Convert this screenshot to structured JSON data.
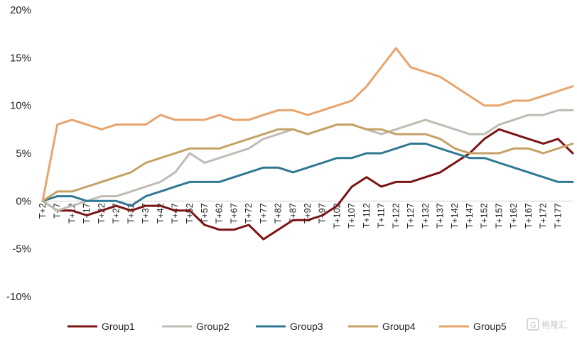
{
  "chart_data": {
    "type": "line",
    "title": "",
    "xlabel": "",
    "ylabel": "",
    "ylim": [
      -10,
      20
    ],
    "yticks": [
      "20%",
      "15%",
      "10%",
      "5%",
      "0%",
      "-5%",
      "-10%"
    ],
    "ytick_values": [
      20,
      15,
      10,
      5,
      0,
      -5,
      -10
    ],
    "xlim": [
      2,
      182
    ],
    "x_tick_labels": [
      "T+2",
      "T+7",
      "T+12",
      "T+17",
      "T+22",
      "T+27",
      "T+32",
      "T+37",
      "T+42",
      "T+47",
      "T+52",
      "T+57",
      "T+62",
      "T+67",
      "T+72",
      "T+77",
      "T+82",
      "T+87",
      "T+92",
      "T+97",
      "T+102",
      "T+107",
      "T+112",
      "T+117",
      "T+122",
      "T+127",
      "T+132",
      "T+137",
      "T+142",
      "T+147",
      "T+152",
      "T+157",
      "T+162",
      "T+167",
      "T+172",
      "T+177"
    ],
    "x_tick_values": [
      2,
      7,
      12,
      17,
      22,
      27,
      32,
      37,
      42,
      47,
      52,
      57,
      62,
      67,
      72,
      77,
      82,
      87,
      92,
      97,
      102,
      107,
      112,
      117,
      122,
      127,
      132,
      137,
      142,
      147,
      152,
      157,
      162,
      167,
      172,
      177
    ],
    "x": [
      2,
      7,
      12,
      17,
      22,
      27,
      32,
      37,
      42,
      47,
      52,
      57,
      62,
      67,
      72,
      77,
      82,
      87,
      92,
      97,
      102,
      107,
      112,
      117,
      122,
      127,
      132,
      137,
      142,
      147,
      152,
      157,
      162,
      167,
      172,
      177,
      182
    ],
    "grid": false,
    "legend_position": "bottom",
    "series": [
      {
        "name": "Group1",
        "color": "#7b1414",
        "values": [
          0,
          -1,
          -1,
          -1.5,
          -1,
          -0.5,
          -1,
          -0.5,
          -0.5,
          -1,
          -1,
          -2.5,
          -3,
          -3,
          -2.5,
          -4,
          -3,
          -2,
          -2,
          -1.5,
          -0.5,
          1.5,
          2.5,
          1.5,
          2,
          2,
          2.5,
          3,
          4,
          5,
          6.5,
          7.5,
          7,
          6.5,
          6,
          6.5,
          5
        ]
      },
      {
        "name": "Group2",
        "color": "#bfbcb5",
        "values": [
          0,
          -1,
          -0.5,
          0,
          0.5,
          0.5,
          1,
          1.5,
          2,
          3,
          5,
          4,
          4.5,
          5,
          5.5,
          6.5,
          7,
          7.5,
          7,
          7.5,
          8,
          8,
          7.5,
          7,
          7.5,
          8,
          8.5,
          8,
          7.5,
          7,
          7,
          8,
          8.5,
          9,
          9,
          9.5,
          9.5
        ]
      },
      {
        "name": "Group3",
        "color": "#2f7892",
        "values": [
          0,
          0.5,
          0.5,
          0,
          0,
          0,
          -0.5,
          0.5,
          1,
          1.5,
          2,
          2,
          2,
          2.5,
          3,
          3.5,
          3.5,
          3,
          3.5,
          4,
          4.5,
          4.5,
          5,
          5,
          5.5,
          6,
          6,
          5.5,
          5,
          4.5,
          4.5,
          4,
          3.5,
          3,
          2.5,
          2,
          2
        ]
      },
      {
        "name": "Group4",
        "color": "#c4a265",
        "values": [
          0,
          1,
          1,
          1.5,
          2,
          2.5,
          3,
          4,
          4.5,
          5,
          5.5,
          5.5,
          5.5,
          6,
          6.5,
          7,
          7.5,
          7.5,
          7,
          7.5,
          8,
          8,
          7.5,
          7.5,
          7,
          7,
          7,
          6.5,
          5.5,
          5,
          5,
          5,
          5.5,
          5.5,
          5,
          5.5,
          6
        ]
      },
      {
        "name": "Group5",
        "color": "#e8a46d",
        "values": [
          0,
          8,
          8.5,
          8,
          7.5,
          8,
          8,
          8,
          9,
          8.5,
          8.5,
          8.5,
          9,
          8.5,
          8.5,
          9,
          9.5,
          9.5,
          9,
          9.5,
          10,
          10.5,
          12,
          14,
          16,
          14,
          13.5,
          13,
          12,
          11,
          10,
          10,
          10.5,
          10.5,
          11,
          11.5,
          12
        ]
      }
    ]
  },
  "watermark": {
    "text": "格隆汇",
    "icon": "gelonghui-logo-icon"
  }
}
